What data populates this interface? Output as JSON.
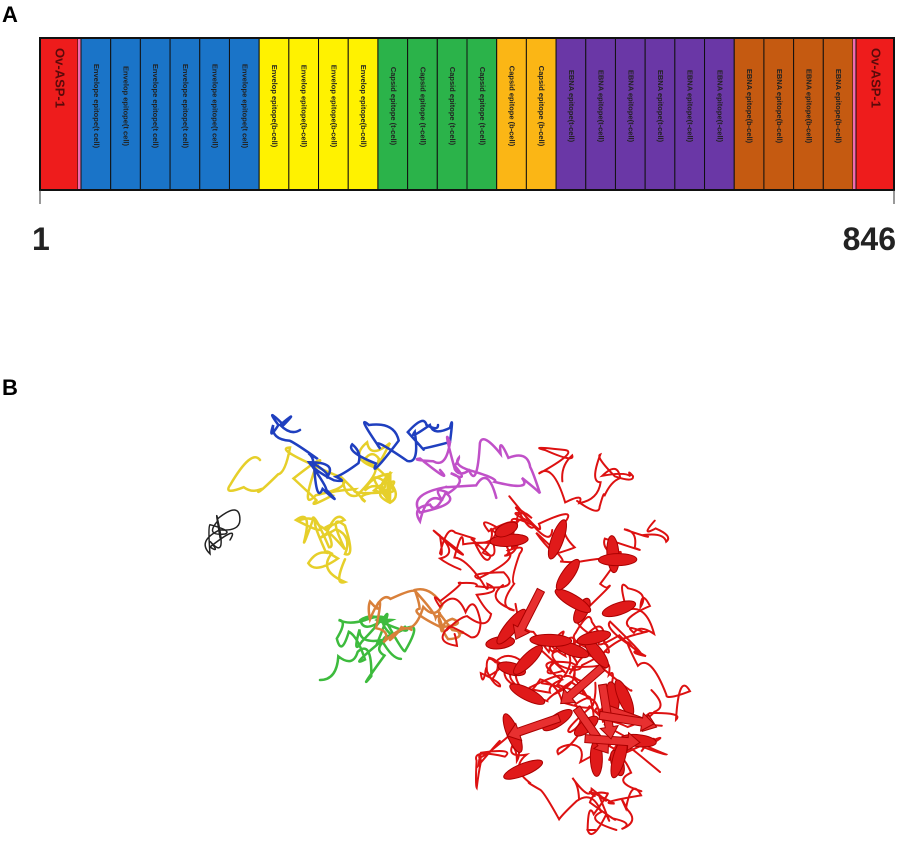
{
  "panel_a": {
    "label": "A",
    "start": 1,
    "end": 846,
    "segments": [
      {
        "text": "Ov-ASP-1",
        "color": "#ee1c1c"
      },
      {
        "text": "Envelope epitope(t cell)",
        "color": "#1a74c8"
      },
      {
        "text": "Envelop epitope(t cell)",
        "color": "#1a74c8"
      },
      {
        "text": "Envelope epitope(t cell)",
        "color": "#1a74c8"
      },
      {
        "text": "Envelope epitope(t cell)",
        "color": "#1a74c8"
      },
      {
        "text": "Envelope epitope(t cell)",
        "color": "#1a74c8"
      },
      {
        "text": "Envelope epitope(t cell)",
        "color": "#1a74c8"
      },
      {
        "text": "Envelop epitope(b-cell)",
        "color": "#fff200"
      },
      {
        "text": "Envelop epitope(b-cell)",
        "color": "#fff200"
      },
      {
        "text": "Envelop epitope(b-cell)",
        "color": "#fff200"
      },
      {
        "text": "Envelop epitope(b-cell)",
        "color": "#fff200"
      },
      {
        "text": "Capsid epitope (t-cell)",
        "color": "#2bb34a"
      },
      {
        "text": "Capsid epitope (t-cell)",
        "color": "#2bb34a"
      },
      {
        "text": "Capsid epitope (t-cell)",
        "color": "#2bb34a"
      },
      {
        "text": "Capsid epitope (t-cell)",
        "color": "#2bb34a"
      },
      {
        "text": "Capsid epitope (b-cell)",
        "color": "#fbb615"
      },
      {
        "text": "Capsid epitope (b-cell)",
        "color": "#fbb615"
      },
      {
        "text": "EBNA epitope(t-cell)",
        "color": "#6a37a6"
      },
      {
        "text": "EBNA epitope(t-cell)",
        "color": "#6a37a6"
      },
      {
        "text": "EBNA epitope(t-cell)",
        "color": "#6a37a6"
      },
      {
        "text": "EBNA epitope(t-cell)",
        "color": "#6a37a6"
      },
      {
        "text": "EBNA epitope(t-cell)",
        "color": "#6a37a6"
      },
      {
        "text": "EBNA epitope(t-cell)",
        "color": "#6a37a6"
      },
      {
        "text": "EBNA epitope(b-cell)",
        "color": "#c55a11"
      },
      {
        "text": "EBNA epitope(b-cell)",
        "color": "#c55a11"
      },
      {
        "text": "EBNA epitope(b-cell)",
        "color": "#c55a11"
      },
      {
        "text": "EBNA epitope(b-cell)",
        "color": "#c55a11"
      },
      {
        "text": "Ov-ASP-1",
        "color": "#ee1c1c"
      }
    ]
  },
  "panel_b": {
    "label": "B"
  }
}
